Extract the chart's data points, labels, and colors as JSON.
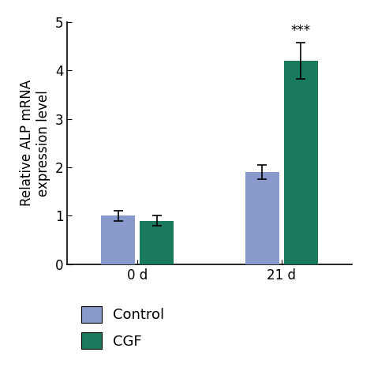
{
  "groups": [
    "0 d",
    "21 d"
  ],
  "control_values": [
    1.0,
    1.9
  ],
  "cgf_values": [
    0.9,
    4.2
  ],
  "control_errors": [
    0.1,
    0.15
  ],
  "cgf_errors": [
    0.1,
    0.38
  ],
  "control_color": "#8899CC",
  "cgf_color": "#1A7A5E",
  "bar_width": 0.28,
  "group_centers": [
    1.0,
    2.2
  ],
  "ylabel": "Relative ALP mRNA\nexpression level",
  "ylim": [
    0,
    5
  ],
  "yticks": [
    0,
    1,
    2,
    3,
    4,
    5
  ],
  "significance_label": "***",
  "legend_labels": [
    "Control",
    "CGF"
  ],
  "background_color": "#ffffff",
  "tick_fontsize": 12,
  "label_fontsize": 12,
  "legend_fontsize": 13
}
